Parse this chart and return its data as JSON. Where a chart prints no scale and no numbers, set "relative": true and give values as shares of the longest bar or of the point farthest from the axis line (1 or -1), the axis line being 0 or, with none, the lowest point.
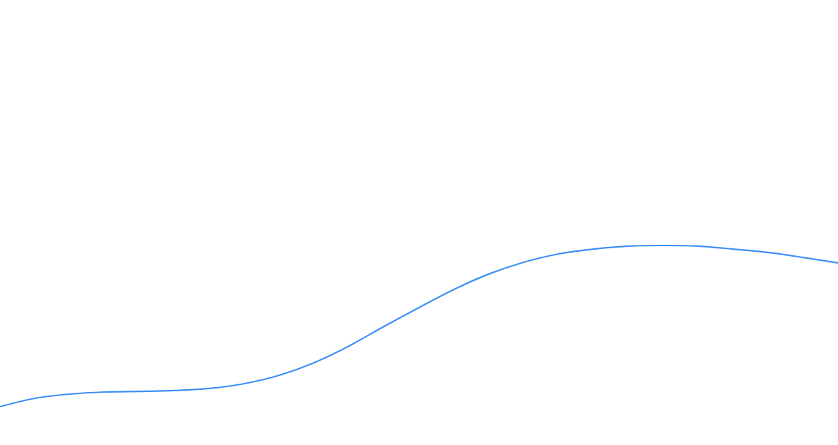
{
  "chart_data": {
    "type": "line",
    "relative": true,
    "categories": [
      null,
      null,
      null,
      null,
      null,
      null,
      null,
      null,
      null,
      null,
      null,
      null,
      null,
      null,
      null,
      null,
      null,
      null,
      null,
      null,
      null,
      null,
      null,
      null,
      null
    ],
    "values": [
      0,
      0.052,
      0.078,
      0.091,
      0.095,
      0.1,
      0.113,
      0.143,
      0.195,
      0.273,
      0.377,
      0.498,
      0.615,
      0.727,
      0.823,
      0.896,
      0.948,
      0.978,
      0.996,
      1,
      0.996,
      0.978,
      0.957,
      0.926,
      0.892
    ],
    "color": "#3d8ef8"
  }
}
